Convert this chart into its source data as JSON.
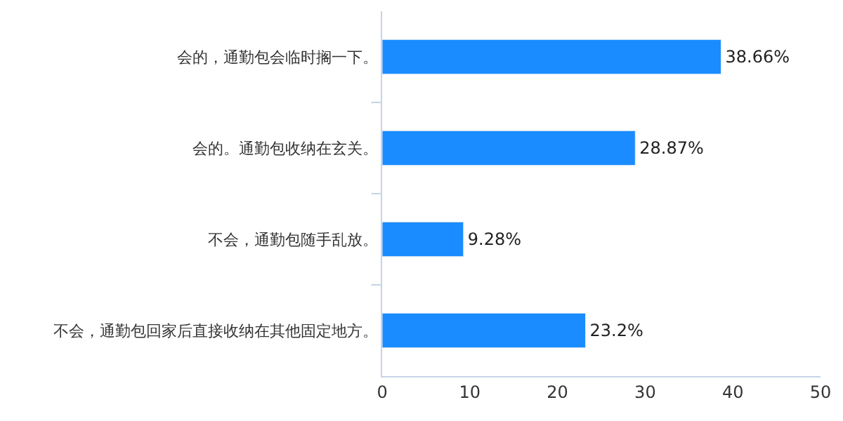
{
  "chart_data": {
    "type": "bar",
    "orientation": "horizontal",
    "categories": [
      "会的，通勤包会临时搁一下。",
      "会的。通勤包收纳在玄关。",
      "不会，通勤包随手乱放。",
      "不会，通勤包回家后直接收纳在其他固定地方。"
    ],
    "values": [
      38.66,
      28.87,
      9.28,
      23.2
    ],
    "value_labels": [
      "38.66%",
      "28.87%",
      "9.28%",
      "23.2%"
    ],
    "color": "#1a8cff",
    "xlim": [
      0,
      50
    ],
    "xticks": [
      0,
      10,
      20,
      30,
      40,
      50
    ]
  }
}
